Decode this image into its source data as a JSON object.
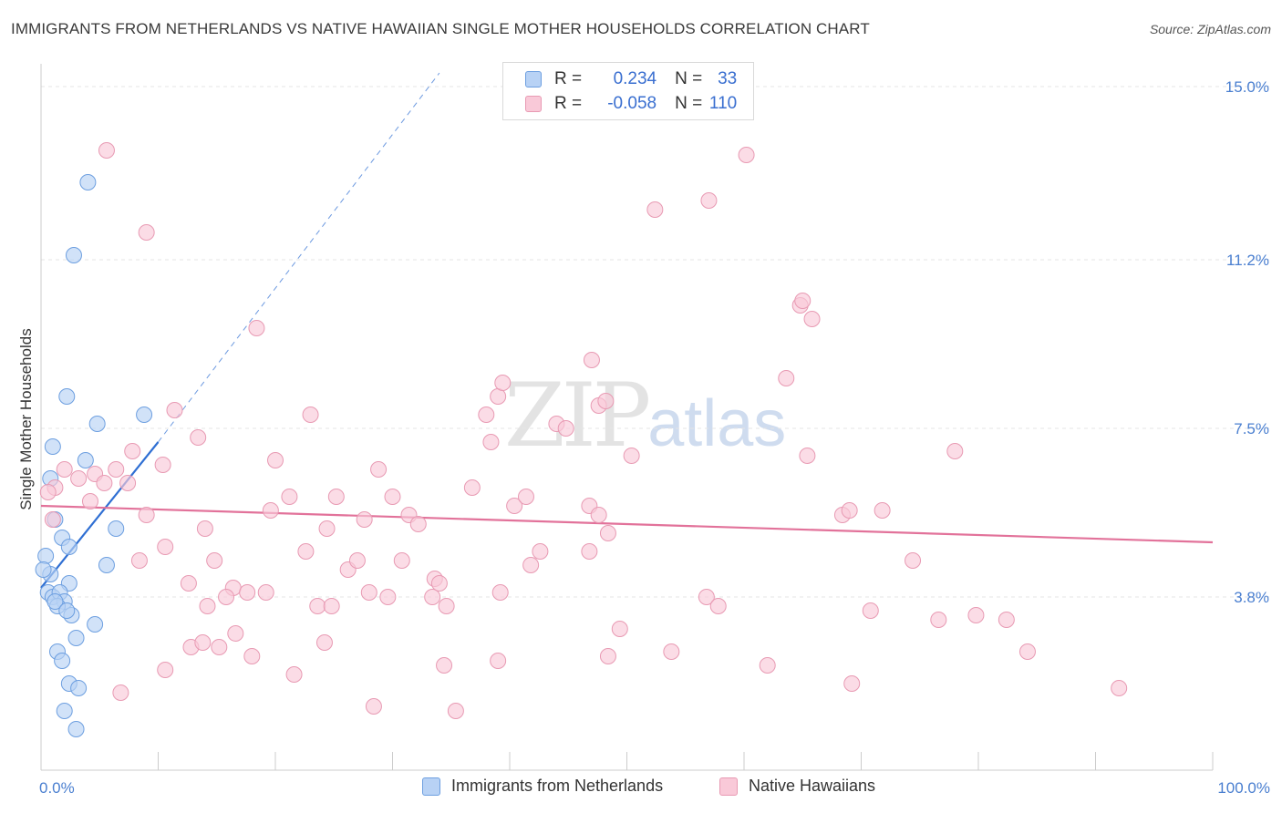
{
  "title": "IMMIGRANTS FROM NETHERLANDS VS NATIVE HAWAIIAN SINGLE MOTHER HOUSEHOLDS CORRELATION CHART",
  "source": "Source: ZipAtlas.com",
  "watermark": {
    "zip": "ZIP",
    "atlas": "atlas"
  },
  "legend": {
    "blue": {
      "r_label": "R =",
      "r_value": "0.234",
      "n_label": "N =",
      "n_value": "33"
    },
    "pink": {
      "r_label": "R =",
      "r_value": "-0.058",
      "n_label": "N =",
      "n_value": "110"
    }
  },
  "colors": {
    "blue_fill": "#b8d2f5",
    "blue_stroke": "#6d9fe0",
    "blue_line": "#2f6fd3",
    "pink_fill": "#f9c9d8",
    "pink_stroke": "#e89ab3",
    "pink_line": "#e2729a",
    "axis_text": "#4a7fd0",
    "grid": "#e4e4e4"
  },
  "chart_data": {
    "type": "scatter",
    "title": "IMMIGRANTS FROM NETHERLANDS VS NATIVE HAWAIIAN SINGLE MOTHER HOUSEHOLDS CORRELATION CHART",
    "xlabel": "",
    "ylabel": "Single Mother Households",
    "xlim": [
      0,
      100
    ],
    "ylim": [
      0,
      15.5
    ],
    "x_tick_labels": [
      "0.0%",
      "100.0%"
    ],
    "y_ticks": [
      3.8,
      7.5,
      11.2,
      15.0
    ],
    "y_tick_labels": [
      "3.8%",
      "7.5%",
      "11.2%",
      "15.0%"
    ],
    "series": [
      {
        "name": "Immigrants from Netherlands",
        "color": "blue",
        "points": [
          [
            4.0,
            12.9
          ],
          [
            2.8,
            11.3
          ],
          [
            2.2,
            8.2
          ],
          [
            4.8,
            7.6
          ],
          [
            8.8,
            7.8
          ],
          [
            1.0,
            7.1
          ],
          [
            3.8,
            6.8
          ],
          [
            1.2,
            5.5
          ],
          [
            6.4,
            5.3
          ],
          [
            1.8,
            5.1
          ],
          [
            2.4,
            4.9
          ],
          [
            0.4,
            4.7
          ],
          [
            5.6,
            4.5
          ],
          [
            0.8,
            4.3
          ],
          [
            2.4,
            4.1
          ],
          [
            0.6,
            3.9
          ],
          [
            1.0,
            3.8
          ],
          [
            1.6,
            3.9
          ],
          [
            2.0,
            3.7
          ],
          [
            1.4,
            3.6
          ],
          [
            2.6,
            3.4
          ],
          [
            4.6,
            3.2
          ],
          [
            3.0,
            2.9
          ],
          [
            1.4,
            2.6
          ],
          [
            1.8,
            2.4
          ],
          [
            2.4,
            1.9
          ],
          [
            3.2,
            1.8
          ],
          [
            2.0,
            1.3
          ],
          [
            3.0,
            0.9
          ],
          [
            0.2,
            4.4
          ],
          [
            1.2,
            3.7
          ],
          [
            2.2,
            3.5
          ],
          [
            0.8,
            6.4
          ]
        ]
      },
      {
        "name": "Native Hawaiians",
        "color": "pink",
        "points": [
          [
            5.6,
            13.6
          ],
          [
            9.0,
            11.8
          ],
          [
            18.4,
            9.7
          ],
          [
            11.4,
            7.9
          ],
          [
            13.4,
            7.3
          ],
          [
            7.8,
            7.0
          ],
          [
            10.4,
            6.7
          ],
          [
            6.4,
            6.6
          ],
          [
            2.0,
            6.6
          ],
          [
            3.2,
            6.4
          ],
          [
            4.6,
            6.5
          ],
          [
            7.4,
            6.3
          ],
          [
            1.2,
            6.2
          ],
          [
            0.6,
            6.1
          ],
          [
            5.4,
            6.3
          ],
          [
            4.2,
            5.9
          ],
          [
            9.0,
            5.6
          ],
          [
            10.6,
            4.9
          ],
          [
            14.0,
            5.3
          ],
          [
            14.8,
            4.6
          ],
          [
            8.4,
            4.6
          ],
          [
            12.6,
            4.1
          ],
          [
            14.2,
            3.6
          ],
          [
            16.4,
            4.0
          ],
          [
            17.6,
            3.9
          ],
          [
            15.8,
            3.8
          ],
          [
            19.2,
            3.9
          ],
          [
            16.6,
            3.0
          ],
          [
            12.8,
            2.7
          ],
          [
            13.8,
            2.8
          ],
          [
            15.2,
            2.7
          ],
          [
            18.0,
            2.5
          ],
          [
            10.6,
            2.2
          ],
          [
            6.8,
            1.7
          ],
          [
            19.6,
            5.7
          ],
          [
            20.0,
            6.8
          ],
          [
            21.2,
            6.0
          ],
          [
            22.6,
            4.8
          ],
          [
            23.0,
            7.8
          ],
          [
            24.4,
            5.3
          ],
          [
            25.2,
            6.0
          ],
          [
            23.6,
            3.6
          ],
          [
            24.8,
            3.6
          ],
          [
            24.2,
            2.8
          ],
          [
            21.6,
            2.1
          ],
          [
            26.2,
            4.4
          ],
          [
            27.0,
            4.6
          ],
          [
            27.6,
            5.5
          ],
          [
            28.0,
            3.9
          ],
          [
            28.8,
            6.6
          ],
          [
            29.6,
            3.8
          ],
          [
            30.0,
            6.0
          ],
          [
            30.8,
            4.6
          ],
          [
            31.4,
            5.6
          ],
          [
            32.2,
            5.4
          ],
          [
            33.6,
            4.2
          ],
          [
            33.4,
            3.8
          ],
          [
            34.0,
            4.1
          ],
          [
            34.6,
            3.6
          ],
          [
            36.8,
            6.2
          ],
          [
            38.0,
            7.8
          ],
          [
            38.4,
            7.2
          ],
          [
            39.0,
            8.2
          ],
          [
            39.4,
            8.5
          ],
          [
            40.4,
            5.8
          ],
          [
            41.4,
            6.0
          ],
          [
            41.8,
            4.5
          ],
          [
            42.6,
            4.8
          ],
          [
            39.2,
            3.9
          ],
          [
            39.0,
            2.4
          ],
          [
            34.4,
            2.3
          ],
          [
            28.4,
            1.4
          ],
          [
            35.4,
            1.3
          ],
          [
            44.0,
            7.6
          ],
          [
            44.8,
            7.5
          ],
          [
            46.8,
            5.8
          ],
          [
            47.6,
            5.6
          ],
          [
            48.4,
            5.2
          ],
          [
            46.8,
            4.8
          ],
          [
            48.4,
            2.5
          ],
          [
            47.0,
            9.0
          ],
          [
            47.6,
            8.0
          ],
          [
            48.2,
            8.1
          ],
          [
            50.4,
            6.9
          ],
          [
            52.4,
            12.3
          ],
          [
            49.4,
            3.1
          ],
          [
            53.8,
            2.6
          ],
          [
            56.8,
            3.8
          ],
          [
            57.8,
            3.6
          ],
          [
            57.0,
            12.5
          ],
          [
            60.2,
            13.5
          ],
          [
            62.0,
            2.3
          ],
          [
            65.4,
            6.9
          ],
          [
            64.8,
            10.2
          ],
          [
            65.8,
            9.9
          ],
          [
            68.4,
            5.6
          ],
          [
            69.0,
            5.7
          ],
          [
            71.8,
            5.7
          ],
          [
            70.8,
            3.5
          ],
          [
            69.2,
            1.9
          ],
          [
            65.0,
            10.3
          ],
          [
            63.6,
            8.6
          ],
          [
            74.4,
            4.6
          ],
          [
            76.6,
            3.3
          ],
          [
            78.0,
            7.0
          ],
          [
            79.8,
            3.4
          ],
          [
            82.4,
            3.3
          ],
          [
            84.2,
            2.6
          ],
          [
            92.0,
            1.8
          ],
          [
            1.0,
            5.5
          ]
        ]
      }
    ],
    "trendlines": [
      {
        "series": "Immigrants from Netherlands",
        "x": [
          0,
          10
        ],
        "y": [
          4.0,
          7.2
        ],
        "extended_dashed_to": [
          34,
          15.3
        ]
      },
      {
        "series": "Native Hawaiians",
        "x": [
          0,
          100
        ],
        "y": [
          5.8,
          5.0
        ]
      }
    ]
  },
  "bottom_legend": {
    "blue_label": "Immigrants from Netherlands",
    "pink_label": "Native Hawaiians"
  }
}
